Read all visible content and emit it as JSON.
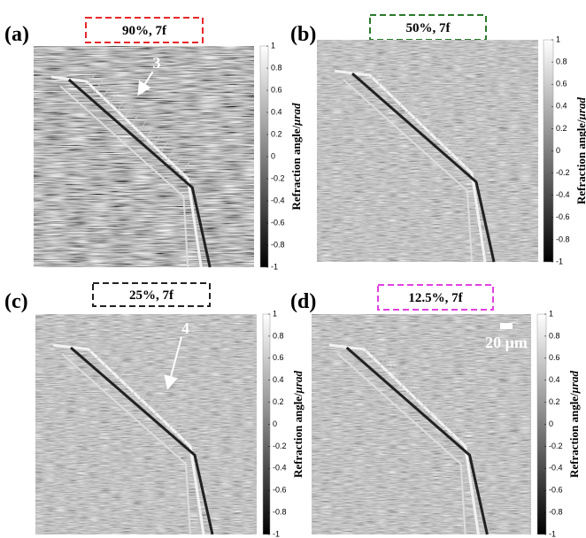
{
  "panels": [
    {
      "label": "(a)",
      "caption": "90%, 7f",
      "caption_color": "#e8262a",
      "annotation": "3",
      "colorbar": {
        "ticks": [
          1,
          0.8,
          0.6,
          0.4,
          0.2,
          0,
          -0.2,
          -0.4,
          -0.6,
          -0.8,
          -1
        ],
        "title": "Refraction angle/",
        "unit": "μrad"
      }
    },
    {
      "label": "(b)",
      "caption": "50%, 7f",
      "caption_color": "#2a7a2a",
      "colorbar": {
        "ticks": [
          1,
          0.8,
          0.6,
          0.4,
          0.2,
          0,
          -0.2,
          -0.4,
          -0.6,
          -0.8,
          -1
        ],
        "title": "Refraction angle/",
        "unit": "μrad"
      }
    },
    {
      "label": "(c)",
      "caption": "25%, 7f",
      "caption_color": "#222222",
      "annotation": "4",
      "colorbar": {
        "ticks": [
          1,
          0.8,
          0.6,
          0.4,
          0.2,
          0,
          -0.2,
          -0.4,
          -0.6,
          -0.8,
          -1
        ],
        "title": "Refraction angle/",
        "unit": "μrad"
      }
    },
    {
      "label": "(d)",
      "caption": "12.5%, 7f",
      "caption_color": "#e040e0",
      "scale_bar": "20 μm",
      "colorbar": {
        "ticks": [
          1,
          0.8,
          0.6,
          0.4,
          0.2,
          0,
          -0.2,
          -0.4,
          -0.6,
          -0.8,
          -1
        ],
        "title": "Refraction angle/",
        "unit": "μrad"
      }
    }
  ]
}
